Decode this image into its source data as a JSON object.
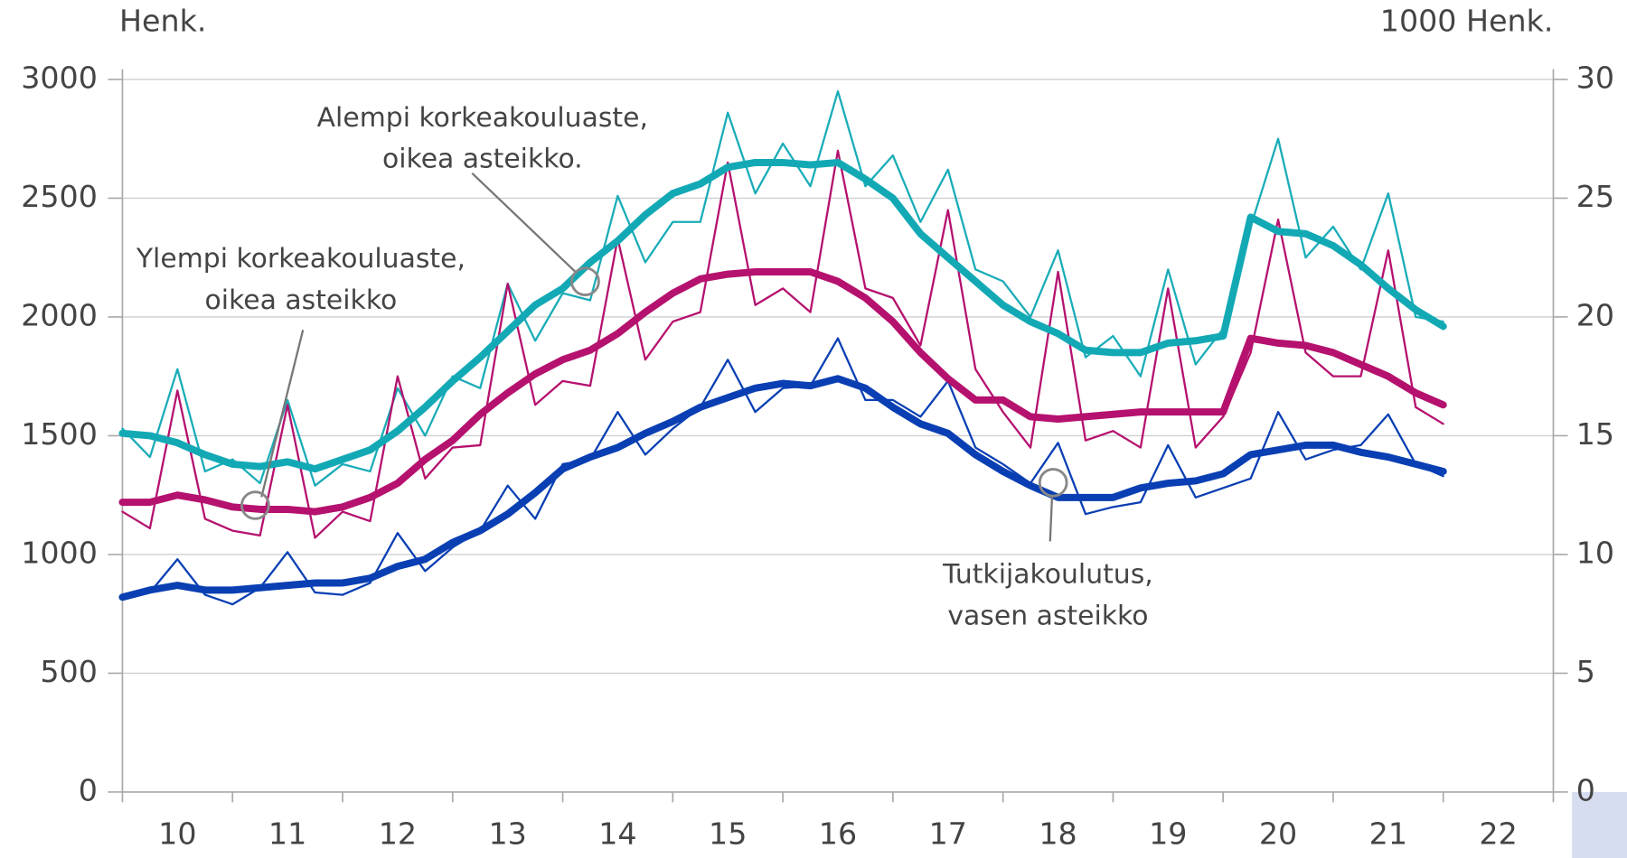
{
  "chart_data": {
    "type": "line",
    "y_label": "Henk.",
    "y2_label": "1000 Henk.",
    "x": [
      10,
      10.25,
      10.5,
      10.75,
      11,
      11.25,
      11.5,
      11.75,
      12,
      12.25,
      12.5,
      12.75,
      13,
      13.25,
      13.5,
      13.75,
      14,
      14.25,
      14.5,
      14.75,
      15,
      15.25,
      15.5,
      15.75,
      16,
      16.25,
      16.5,
      16.75,
      17,
      17.25,
      17.5,
      17.75,
      18,
      18.25,
      18.5,
      18.75,
      19,
      19.25,
      19.5,
      19.75,
      20,
      20.25,
      20.5,
      20.75,
      21,
      21.25,
      21.5,
      21.75,
      22
    ],
    "xlim": [
      10,
      23
    ],
    "xticks": [
      10,
      11,
      12,
      13,
      14,
      15,
      16,
      17,
      18,
      19,
      20,
      21,
      22
    ],
    "ylim": [
      0,
      3000
    ],
    "yticks": [
      0,
      500,
      1000,
      1500,
      2000,
      2500,
      3000
    ],
    "y2lim": [
      0,
      30
    ],
    "y2ticks": [
      0,
      5,
      10,
      15,
      20,
      25,
      30
    ],
    "grid": true,
    "series": [
      {
        "color": "#1aacb8",
        "axis": "y2",
        "linewidth": 2,
        "values": [
          15.3,
          14.1,
          17.8,
          13.5,
          14.0,
          13.0,
          16.5,
          12.9,
          13.8,
          13.5,
          17.0,
          15.0,
          17.5,
          17.0,
          21.4,
          19.0,
          21.0,
          20.7,
          25.1,
          22.3,
          24.0,
          24.0,
          28.6,
          25.2,
          27.3,
          25.5,
          29.5,
          25.5,
          26.8,
          24.0,
          26.2,
          22.0,
          21.5,
          20.0,
          22.8,
          18.3,
          19.2,
          17.5,
          22.0,
          18.0,
          19.5,
          23.8,
          27.5,
          22.5,
          23.8,
          22.0,
          25.2,
          20.0,
          19.8
        ]
      },
      {
        "color": "#b5116e",
        "axis": "y2",
        "linewidth": 2,
        "values": [
          11.8,
          11.1,
          16.9,
          11.5,
          11.0,
          10.8,
          16.3,
          10.7,
          11.8,
          11.4,
          17.5,
          13.2,
          14.5,
          14.6,
          21.4,
          16.3,
          17.3,
          17.1,
          23.3,
          18.2,
          19.8,
          20.2,
          26.5,
          20.5,
          21.2,
          20.2,
          27.0,
          21.2,
          20.8,
          18.8,
          24.5,
          17.8,
          16.0,
          14.5,
          21.9,
          14.8,
          15.2,
          14.5,
          21.2,
          14.5,
          15.8,
          18.5,
          24.1,
          18.5,
          17.5,
          17.5,
          22.8,
          16.2,
          15.5
        ]
      },
      {
        "color": "#0a3fb3",
        "linewidth": 2,
        "values": [
          810,
          840,
          980,
          830,
          790,
          860,
          1010,
          840,
          830,
          880,
          1090,
          930,
          1030,
          1100,
          1290,
          1150,
          1380,
          1400,
          1600,
          1420,
          1530,
          1620,
          1820,
          1600,
          1700,
          1710,
          1910,
          1650,
          1650,
          1580,
          1730,
          1450,
          1380,
          1300,
          1470,
          1170,
          1200,
          1220,
          1460,
          1240,
          1280,
          1320,
          1600,
          1400,
          1440,
          1460,
          1590,
          1380,
          1330
        ]
      },
      {
        "color": "#12a9b5",
        "axis": "y2",
        "linewidth": 7,
        "values": [
          15.1,
          15.0,
          14.7,
          14.2,
          13.8,
          13.7,
          13.9,
          13.6,
          14.0,
          14.4,
          15.2,
          16.2,
          17.3,
          18.3,
          19.4,
          20.5,
          21.2,
          22.3,
          23.2,
          24.3,
          25.2,
          25.6,
          26.3,
          26.5,
          26.5,
          26.4,
          26.5,
          25.8,
          25.0,
          23.5,
          22.5,
          21.5,
          20.5,
          19.8,
          19.3,
          18.6,
          18.5,
          18.5,
          18.9,
          19.0,
          19.2,
          24.2,
          23.6,
          23.5,
          23.0,
          22.2,
          21.2,
          20.3,
          19.6
        ]
      },
      {
        "color": "#b5116e",
        "axis": "y2",
        "linewidth": 7,
        "values": [
          12.2,
          12.2,
          12.5,
          12.3,
          12.0,
          11.9,
          11.9,
          11.8,
          12.0,
          12.4,
          13.0,
          14.0,
          14.8,
          15.9,
          16.8,
          17.6,
          18.2,
          18.6,
          19.3,
          20.2,
          21.0,
          21.6,
          21.8,
          21.9,
          21.9,
          21.9,
          21.5,
          20.8,
          19.8,
          18.5,
          17.4,
          16.5,
          16.5,
          15.8,
          15.7,
          15.8,
          15.9,
          16.0,
          16.0,
          16.0,
          16.0,
          19.1,
          18.9,
          18.8,
          18.5,
          18.0,
          17.5,
          16.8,
          16.3
        ]
      },
      {
        "color": "#0a3fb3",
        "linewidth": 7,
        "values": [
          820,
          850,
          870,
          850,
          850,
          860,
          870,
          880,
          880,
          900,
          950,
          980,
          1050,
          1100,
          1170,
          1260,
          1360,
          1410,
          1450,
          1510,
          1560,
          1620,
          1660,
          1700,
          1720,
          1710,
          1740,
          1700,
          1620,
          1550,
          1510,
          1420,
          1350,
          1290,
          1240,
          1240,
          1240,
          1280,
          1300,
          1310,
          1340,
          1420,
          1440,
          1460,
          1460,
          1430,
          1410,
          1380,
          1350
        ]
      }
    ],
    "annotations": [
      [
        "Alempi korkeakouluaste,",
        "oikea asteikko."
      ],
      [
        "Ylempi korkeakouluaste,",
        "oikea asteikko"
      ],
      [
        "Tutkijakoulutus,",
        "vasen asteikko"
      ]
    ]
  }
}
